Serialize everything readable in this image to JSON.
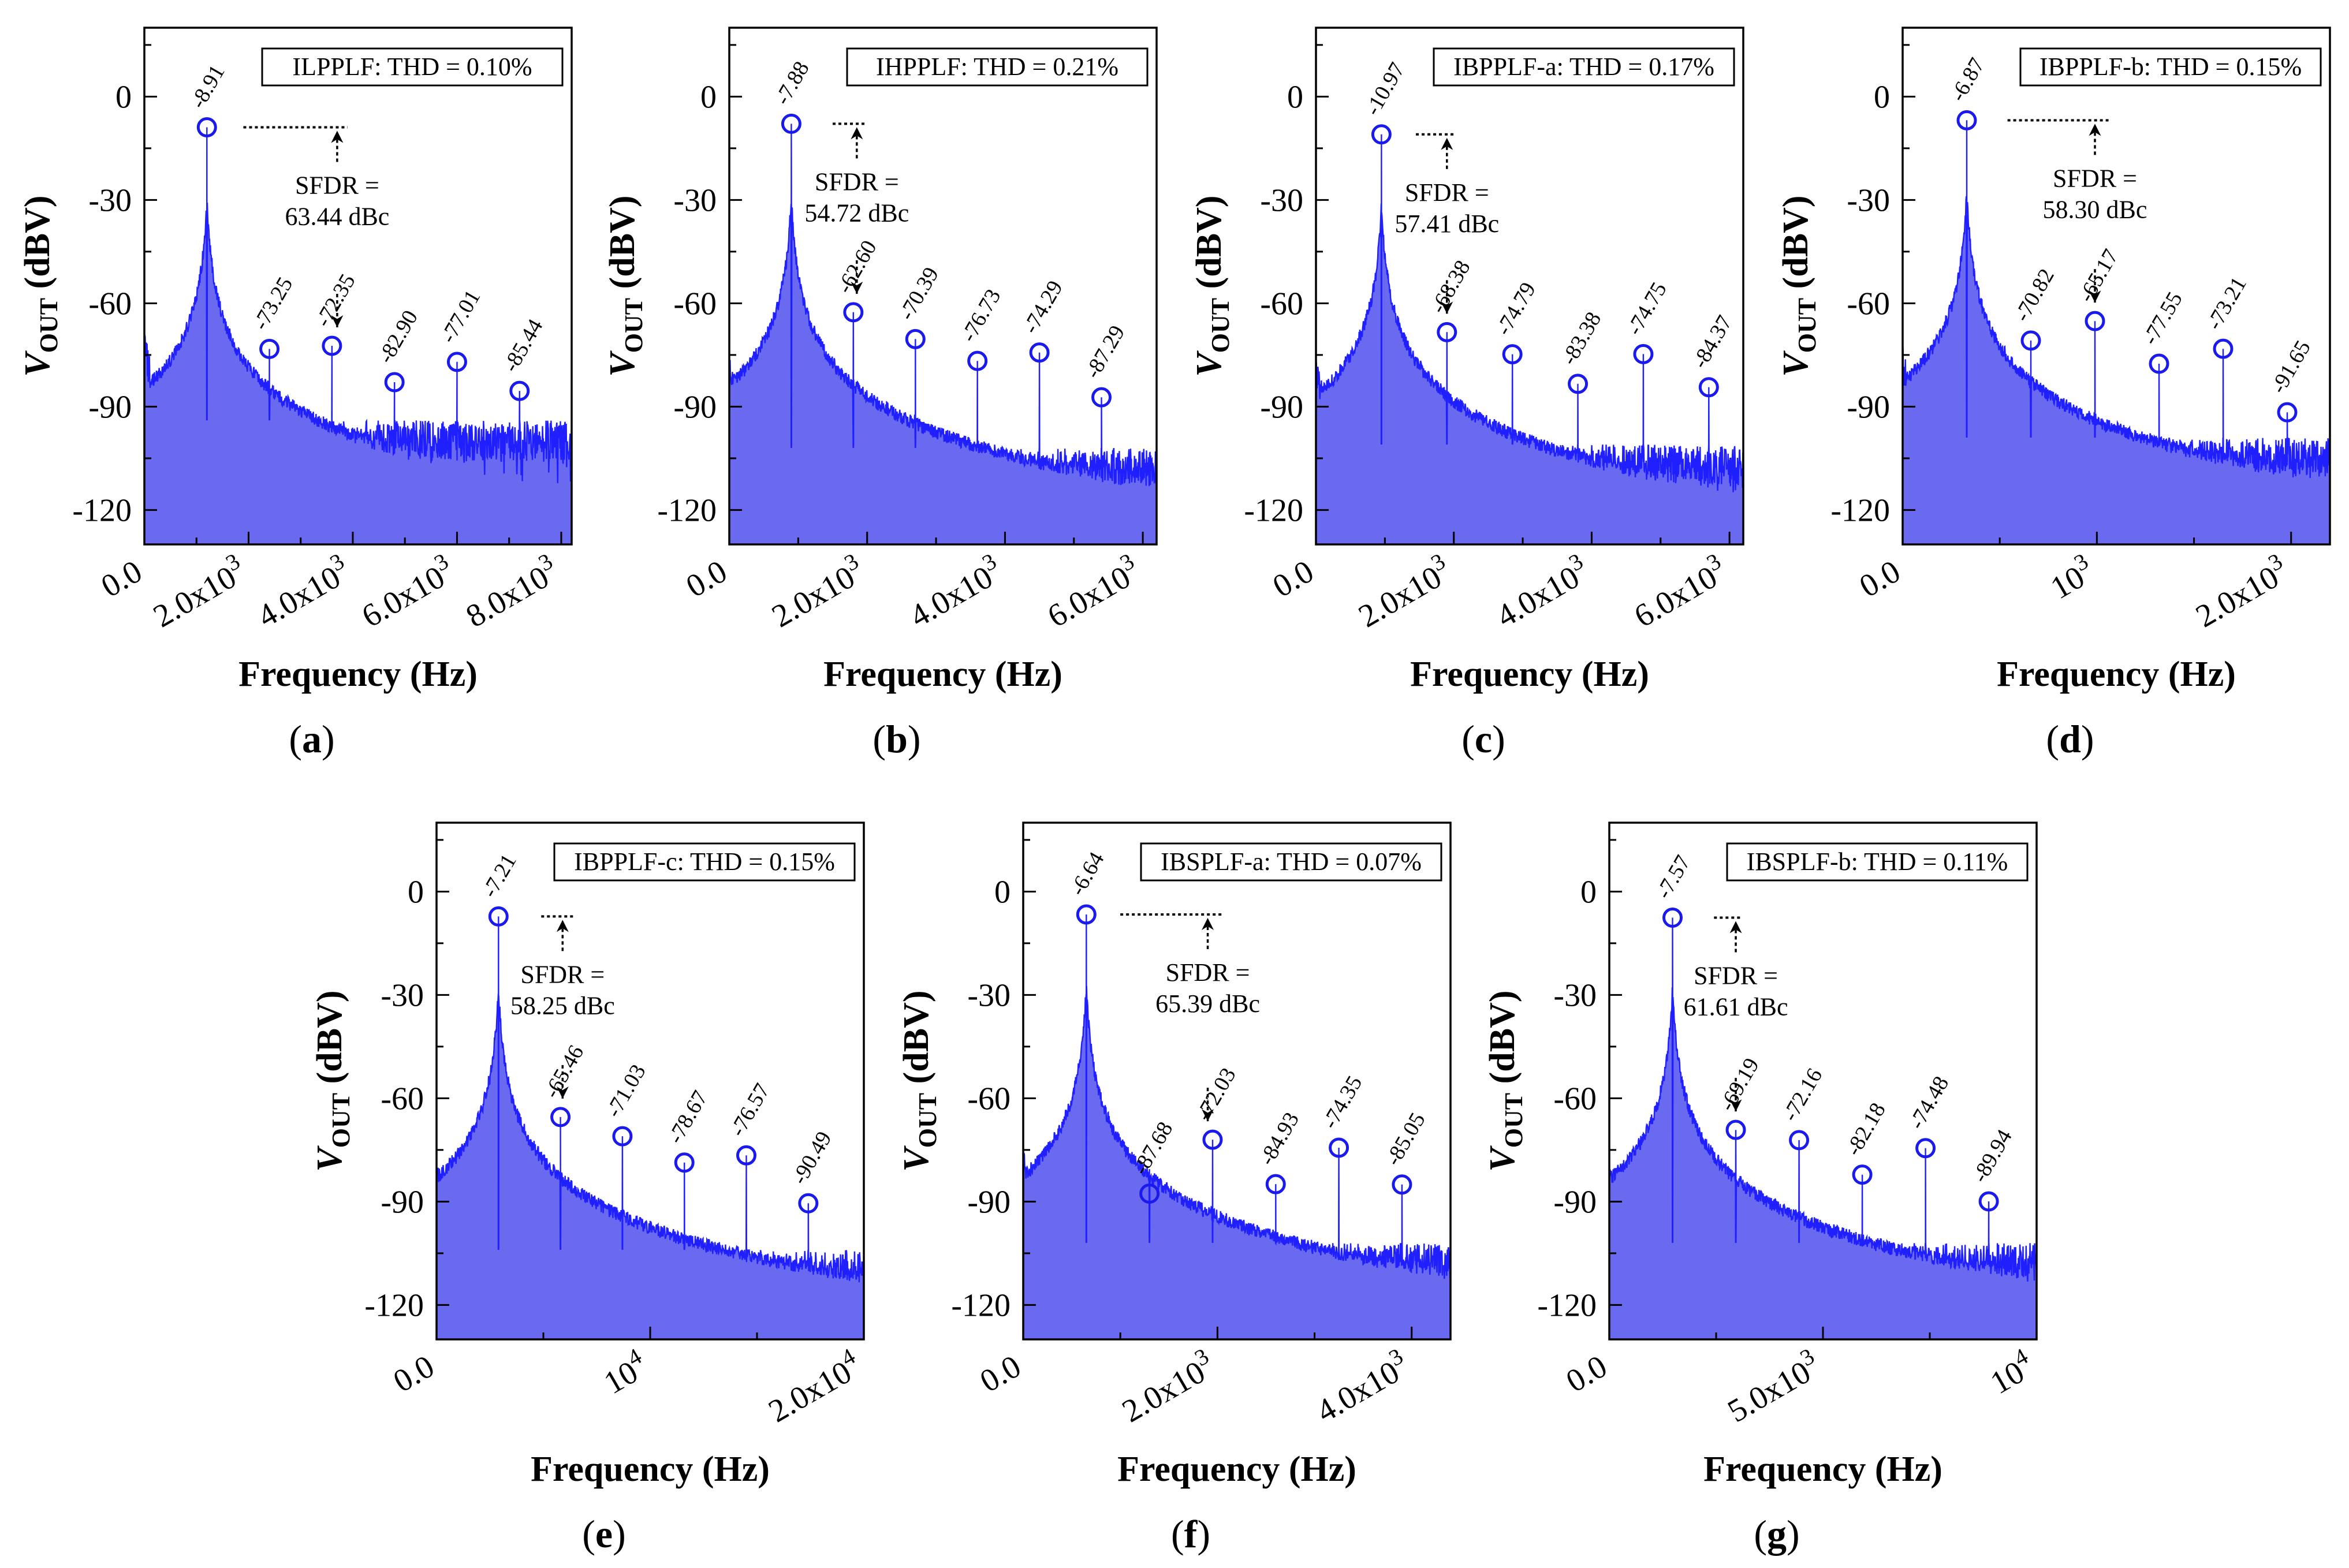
{
  "colors": {
    "spectrum_line": "#1f1fff",
    "spectrum_fill": "#6a6af0",
    "marker": "#1a1aee",
    "axis": "#000000",
    "background": "#ffffff"
  },
  "common": {
    "xlabel": "Frequency (Hz)",
    "ylabel_v": "V",
    "ylabel_sub": "OUT",
    "ylabel_unit": " (dBV)",
    "sfdr_label": "SFDR =",
    "yticks": [
      "-120",
      "-90",
      "-60",
      "-30",
      "0"
    ]
  },
  "chart_data": [
    {
      "type": "area",
      "panel_label": "(a)",
      "legend": "ILPPLF: THD = 0.10%",
      "xlabel": "Frequency (Hz)",
      "ylabel": "VOUT (dBV)",
      "xlim": [
        0,
        8200
      ],
      "ylim": [
        -130,
        20
      ],
      "noise_floor": -100,
      "fundamental_frequency": 1200,
      "xticks": [
        {
          "value": 0,
          "label": "0.0"
        },
        {
          "value": 2000,
          "label": "2.0x10",
          "exp": "3"
        },
        {
          "value": 4000,
          "label": "4.0x10",
          "exp": "3"
        },
        {
          "value": 6000,
          "label": "6.0x10",
          "exp": "3"
        },
        {
          "value": 8000,
          "label": "8.0x10",
          "exp": "3"
        }
      ],
      "peaks": [
        {
          "x": 1200,
          "y": -8.91,
          "label": "-8.91"
        },
        {
          "x": 2400,
          "y": -73.25,
          "label": "-73.25"
        },
        {
          "x": 3600,
          "y": -72.35,
          "label": "-72.35"
        },
        {
          "x": 4800,
          "y": -82.9,
          "label": "-82.90"
        },
        {
          "x": 6000,
          "y": -77.01,
          "label": "-77.01"
        },
        {
          "x": 7200,
          "y": -85.44,
          "label": "-85.44"
        }
      ],
      "sfdr": {
        "value": "63.44 dBc",
        "x_start": 1900,
        "x_end": 3900,
        "arrow_x": 3700
      }
    },
    {
      "type": "area",
      "panel_label": "(b)",
      "legend": "IHPPLF: THD = 0.21%",
      "xlabel": "Frequency (Hz)",
      "ylabel": "VOUT (dBV)",
      "xlim": [
        0,
        6200
      ],
      "ylim": [
        -130,
        20
      ],
      "noise_floor": -108,
      "fundamental_frequency": 900,
      "xticks": [
        {
          "value": 0,
          "label": "0.0"
        },
        {
          "value": 2000,
          "label": "2.0x10",
          "exp": "3"
        },
        {
          "value": 4000,
          "label": "4.0x10",
          "exp": "3"
        },
        {
          "value": 6000,
          "label": "6.0x10",
          "exp": "3"
        }
      ],
      "peaks": [
        {
          "x": 900,
          "y": -7.88,
          "label": "-7.88"
        },
        {
          "x": 1800,
          "y": -62.6,
          "label": "-62.60"
        },
        {
          "x": 2700,
          "y": -70.39,
          "label": "-70.39"
        },
        {
          "x": 3600,
          "y": -76.73,
          "label": "-76.73"
        },
        {
          "x": 4500,
          "y": -74.29,
          "label": "-74.29"
        },
        {
          "x": 5400,
          "y": -87.29,
          "label": "-87.29"
        }
      ],
      "sfdr": {
        "value": "54.72 dBc",
        "x_start": 1500,
        "x_end": 1980,
        "arrow_x": 1850
      }
    },
    {
      "type": "area",
      "panel_label": "(c)",
      "legend": "IBPPLF-a: THD = 0.17%",
      "xlabel": "Frequency (Hz)",
      "ylabel": "VOUT (dBV)",
      "xlim": [
        0,
        6200
      ],
      "ylim": [
        -130,
        20
      ],
      "noise_floor": -107,
      "fundamental_frequency": 950,
      "xticks": [
        {
          "value": 0,
          "label": "0.0"
        },
        {
          "value": 2000,
          "label": "2.0x10",
          "exp": "3"
        },
        {
          "value": 4000,
          "label": "4.0x10",
          "exp": "3"
        },
        {
          "value": 6000,
          "label": "6.0x10",
          "exp": "3"
        }
      ],
      "peaks": [
        {
          "x": 950,
          "y": -10.97,
          "label": "-10.97"
        },
        {
          "x": 1900,
          "y": -68.38,
          "label": "-68.38"
        },
        {
          "x": 2850,
          "y": -74.79,
          "label": "-74.79"
        },
        {
          "x": 3800,
          "y": -83.38,
          "label": "-83.38"
        },
        {
          "x": 4750,
          "y": -74.75,
          "label": "-74.75"
        },
        {
          "x": 5700,
          "y": -84.37,
          "label": "-84.37"
        }
      ],
      "sfdr": {
        "value": "57.41 dBc",
        "x_start": 1450,
        "x_end": 2030,
        "arrow_x": 1900
      }
    },
    {
      "type": "area",
      "panel_label": "(d)",
      "legend": "IBPPLF-b: THD = 0.15%",
      "xlabel": "Frequency (Hz)",
      "ylabel": "VOUT (dBV)",
      "xlim": [
        0,
        2200
      ],
      "ylim": [
        -130,
        20
      ],
      "noise_floor": -105,
      "fundamental_frequency": 330,
      "xticks": [
        {
          "value": 0,
          "label": "0.0"
        },
        {
          "value": 1000,
          "label": "10",
          "exp": "3"
        },
        {
          "value": 2000,
          "label": "2.0x10",
          "exp": "3"
        }
      ],
      "peaks": [
        {
          "x": 330,
          "y": -6.87,
          "label": "-6.87"
        },
        {
          "x": 660,
          "y": -70.82,
          "label": "-70.82"
        },
        {
          "x": 990,
          "y": -65.17,
          "label": "-65.17"
        },
        {
          "x": 1320,
          "y": -77.55,
          "label": "-77.55"
        },
        {
          "x": 1650,
          "y": -73.21,
          "label": "-73.21"
        },
        {
          "x": 1980,
          "y": -91.65,
          "label": "-91.65"
        }
      ],
      "sfdr": {
        "value": "58.30 dBc",
        "x_start": 540,
        "x_end": 1060,
        "arrow_x": 990
      }
    },
    {
      "type": "area",
      "panel_label": "(e)",
      "legend": "IBPPLF-c: THD = 0.15%",
      "xlabel": "Frequency (Hz)",
      "ylabel": "VOUT (dBV)",
      "xlim": [
        0,
        20000
      ],
      "ylim": [
        -130,
        20
      ],
      "noise_floor": -110,
      "fundamental_frequency": 2900,
      "xticks": [
        {
          "value": 0,
          "label": "0.0"
        },
        {
          "value": 10000,
          "label": "10",
          "exp": "4"
        },
        {
          "value": 20000,
          "label": "2.0x10",
          "exp": "4"
        }
      ],
      "peaks": [
        {
          "x": 2900,
          "y": -7.21,
          "label": "-7.21"
        },
        {
          "x": 5800,
          "y": -65.46,
          "label": "-65.46"
        },
        {
          "x": 8700,
          "y": -71.03,
          "label": "-71.03"
        },
        {
          "x": 11600,
          "y": -78.67,
          "label": "-78.67"
        },
        {
          "x": 14500,
          "y": -76.57,
          "label": "-76.57"
        },
        {
          "x": 17400,
          "y": -90.49,
          "label": "-90.49"
        }
      ],
      "sfdr": {
        "value": "58.25 dBc",
        "x_start": 4900,
        "x_end": 6400,
        "arrow_x": 5900
      }
    },
    {
      "type": "area",
      "panel_label": "(f)",
      "legend": "IBSPLF-a: THD = 0.07%",
      "xlabel": "Frequency (Hz)",
      "ylabel": "VOUT (dBV)",
      "xlim": [
        0,
        4400
      ],
      "ylim": [
        -130,
        20
      ],
      "noise_floor": -108,
      "fundamental_frequency": 650,
      "xticks": [
        {
          "value": 0,
          "label": "0.0"
        },
        {
          "value": 2000,
          "label": "2.0x10",
          "exp": "3"
        },
        {
          "value": 4000,
          "label": "4.0x10",
          "exp": "3"
        }
      ],
      "peaks": [
        {
          "x": 650,
          "y": -6.64,
          "label": "-6.64"
        },
        {
          "x": 1300,
          "y": -87.68,
          "label": "-87.68"
        },
        {
          "x": 1950,
          "y": -72.03,
          "label": "-72.03"
        },
        {
          "x": 2600,
          "y": -84.93,
          "label": "-84.93"
        },
        {
          "x": 3250,
          "y": -74.35,
          "label": "-74.35"
        },
        {
          "x": 3900,
          "y": -85.05,
          "label": "-85.05"
        }
      ],
      "sfdr": {
        "value": "65.39 dBc",
        "x_start": 1000,
        "x_end": 2050,
        "arrow_x": 1900
      }
    },
    {
      "type": "area",
      "panel_label": "(g)",
      "legend": "IBSPLF-b: THD = 0.11%",
      "xlabel": "Frequency (Hz)",
      "ylabel": "VOUT (dBV)",
      "xlim": [
        0,
        10000
      ],
      "ylim": [
        -130,
        20
      ],
      "noise_floor": -108,
      "fundamental_frequency": 1480,
      "xticks": [
        {
          "value": 0,
          "label": "0.0"
        },
        {
          "value": 5000,
          "label": "5.0x10",
          "exp": "3"
        },
        {
          "value": 10000,
          "label": "10",
          "exp": "4"
        }
      ],
      "peaks": [
        {
          "x": 1480,
          "y": -7.57,
          "label": "-7.57"
        },
        {
          "x": 2960,
          "y": -69.19,
          "label": "-69.19"
        },
        {
          "x": 4440,
          "y": -72.16,
          "label": "-72.16"
        },
        {
          "x": 5920,
          "y": -82.18,
          "label": "-82.18"
        },
        {
          "x": 7400,
          "y": -74.48,
          "label": "-74.48"
        },
        {
          "x": 8880,
          "y": -89.94,
          "label": "-89.94"
        }
      ],
      "sfdr": {
        "value": "61.61 dBc",
        "x_start": 2450,
        "x_end": 3100,
        "arrow_x": 2960
      }
    }
  ]
}
